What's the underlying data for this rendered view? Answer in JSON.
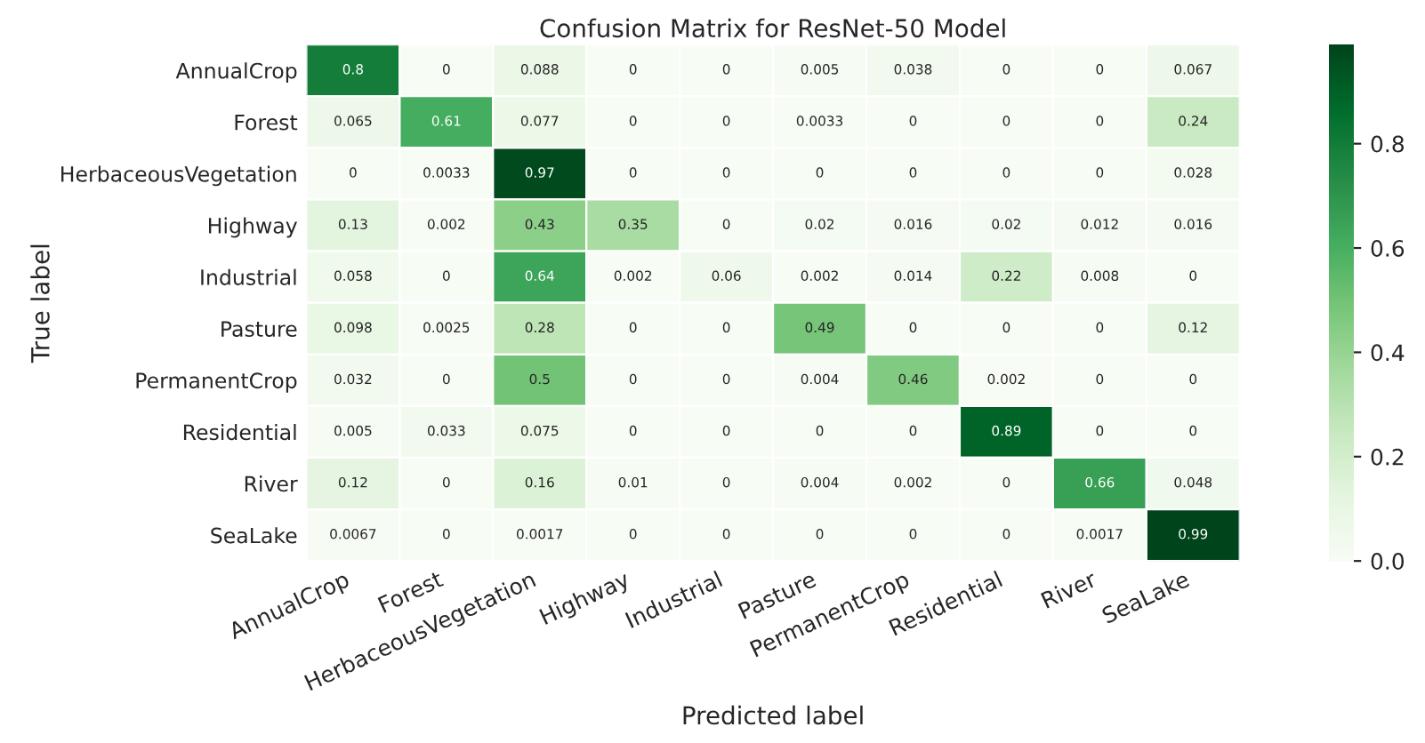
{
  "chart_data": {
    "type": "heatmap",
    "title": "Confusion Matrix for ResNet-50 Model",
    "xlabel": "Predicted label",
    "ylabel": "True label",
    "categories": [
      "AnnualCrop",
      "Forest",
      "HerbaceousVegetation",
      "Highway",
      "Industrial",
      "Pasture",
      "PermanentCrop",
      "Residential",
      "River",
      "SeaLake"
    ],
    "y_categories": [
      "AnnualCrop",
      "Forest",
      "HerbaceousVegetation",
      "Highway",
      "Industrial",
      "Pasture",
      "PermanentCrop",
      "Residential",
      "River",
      "SeaLake"
    ],
    "cells": [
      [
        0.8,
        0,
        0.088,
        0,
        0,
        0.005,
        0.038,
        0,
        0,
        0.067
      ],
      [
        0.065,
        0.61,
        0.077,
        0,
        0,
        0.0033,
        0,
        0,
        0,
        0.24
      ],
      [
        0,
        0.0033,
        0.97,
        0,
        0,
        0,
        0,
        0,
        0,
        0.028
      ],
      [
        0.13,
        0.002,
        0.43,
        0.35,
        0,
        0.02,
        0.016,
        0.02,
        0.012,
        0.016
      ],
      [
        0.058,
        0,
        0.64,
        0.002,
        0.06,
        0.002,
        0.014,
        0.22,
        0.008,
        0
      ],
      [
        0.098,
        0.0025,
        0.28,
        0,
        0,
        0.49,
        0,
        0,
        0,
        0.12
      ],
      [
        0.032,
        0,
        0.5,
        0,
        0,
        0.004,
        0.46,
        0.002,
        0,
        0
      ],
      [
        0.005,
        0.033,
        0.075,
        0,
        0,
        0,
        0,
        0.89,
        0,
        0
      ],
      [
        0.12,
        0,
        0.16,
        0.01,
        0,
        0.004,
        0.002,
        0,
        0.66,
        0.048
      ],
      [
        0.0067,
        0,
        0.0017,
        0,
        0,
        0,
        0,
        0,
        0.0017,
        0.99
      ]
    ],
    "data_labels": true,
    "clim": [
      0,
      0.99
    ],
    "cticks": [
      {
        "value": 0,
        "label": "0.0"
      },
      {
        "value": 0.2,
        "label": "0.2"
      },
      {
        "value": 0.4,
        "label": "0.4"
      },
      {
        "value": 0.6,
        "label": "0.6"
      },
      {
        "value": 0.8,
        "label": "0.8"
      }
    ]
  }
}
